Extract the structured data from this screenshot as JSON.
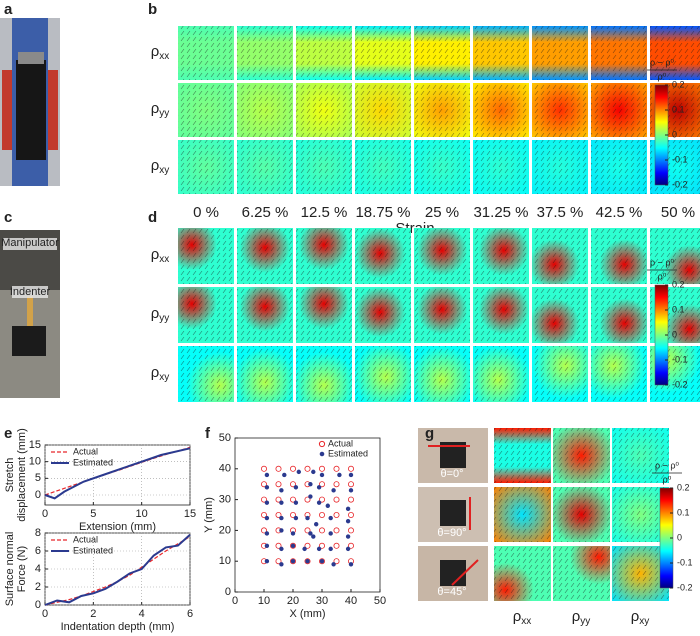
{
  "panel_labels": [
    "a",
    "b",
    "c",
    "d",
    "e",
    "f",
    "g"
  ],
  "photo_labels": {
    "manipulator": "Manipulator",
    "indenter": "Indenter",
    "angles": [
      "θ=0°",
      "θ=90°",
      "θ=45°"
    ]
  },
  "rows": [
    {
      "symbol": "ρ",
      "sub": "xx"
    },
    {
      "symbol": "ρ",
      "sub": "yy"
    },
    {
      "symbol": "ρ",
      "sub": "xy"
    }
  ],
  "strain": {
    "labels": [
      "0 %",
      "6.25 %",
      "12.5 %",
      "18.75 %",
      "25 %",
      "31.25 %",
      "37.5 %",
      "42.5 %",
      "50 %"
    ],
    "axis_label": "Strain"
  },
  "colorbars": [
    {
      "numerator": "ρ − ρ⁰",
      "denominator": "ρ⁰",
      "lim": [
        -0.2,
        0.2
      ],
      "ticks": [
        0.2,
        0.1,
        0,
        -0.1,
        -0.2
      ]
    },
    {
      "numerator": "ρ − ρ⁰",
      "denominator": "ρ⁰",
      "lim": [
        -0.2,
        0.2
      ],
      "ticks": [
        0.2,
        0.1,
        0,
        -0.1,
        -0.2
      ]
    },
    {
      "numerator": "ρ − ρ⁰",
      "denominator": "ρ⁰",
      "lim": [
        -0.2,
        0.2
      ],
      "ticks": [
        0.2,
        0.1,
        0,
        -0.1,
        -0.2
      ]
    }
  ],
  "chart_data": [
    {
      "type": "line",
      "xlabel": "Extension (mm)",
      "ylabel": [
        "Stretch",
        "displacement (mm)"
      ],
      "x": [
        0,
        1,
        2,
        4,
        6,
        8,
        10,
        12,
        15
      ],
      "series": [
        {
          "name": "Actual",
          "color": "#e8262a",
          "dash": true,
          "values": [
            0,
            1,
            2,
            4,
            5.9,
            7.8,
            9.8,
            11.7,
            14.3
          ]
        },
        {
          "name": "Estimated",
          "color": "#2b3a8f",
          "dash": false,
          "values": [
            0,
            -1,
            1,
            4,
            6,
            8,
            10,
            12,
            14
          ]
        }
      ],
      "xlim": [
        0,
        15
      ],
      "ylim": [
        -3,
        15
      ],
      "xticks": [
        0,
        5,
        10,
        15
      ],
      "yticks": [
        0,
        5,
        10,
        15
      ],
      "grid": true
    },
    {
      "type": "line",
      "xlabel": "Indentation depth (mm)",
      "ylabel": [
        "Surface normal",
        "Force (N)"
      ],
      "x": [
        0,
        0.5,
        1,
        1.5,
        2,
        2.5,
        3,
        3.5,
        4,
        4.5,
        5,
        5.5,
        6
      ],
      "series": [
        {
          "name": "Actual",
          "color": "#e8262a",
          "dash": true,
          "values": [
            0,
            0.3,
            0.6,
            1,
            1.5,
            2,
            2.6,
            3.3,
            4.2,
            5.1,
            6,
            6.8,
            7.6
          ]
        },
        {
          "name": "Estimated",
          "color": "#2b3a8f",
          "dash": false,
          "values": [
            0,
            0.5,
            0.3,
            1,
            1.3,
            1.8,
            2.6,
            3.5,
            4,
            5.5,
            6.4,
            6.6,
            7.8
          ]
        }
      ],
      "xlim": [
        0,
        6
      ],
      "ylim": [
        0,
        8
      ],
      "xticks": [
        0,
        2,
        4,
        6
      ],
      "yticks": [
        0,
        2,
        4,
        6,
        8
      ],
      "grid": true
    },
    {
      "type": "scatter",
      "xlabel": "X (mm)",
      "ylabel": "Y (mm)",
      "series": [
        {
          "name": "Actual",
          "color": "#e8262a",
          "marker": "circle",
          "x": [
            10,
            15,
            20,
            25,
            30,
            35,
            40,
            10,
            15,
            20,
            25,
            30,
            35,
            40,
            10,
            15,
            20,
            25,
            30,
            35,
            40,
            10,
            15,
            20,
            25,
            30,
            35,
            40,
            10,
            15,
            20,
            25,
            30,
            35,
            40,
            10,
            15,
            20,
            25,
            30,
            35,
            40,
            10,
            15,
            20,
            25,
            30,
            35,
            40
          ],
          "values": [
            40,
            40,
            40,
            40,
            40,
            40,
            40,
            35,
            35,
            35,
            35,
            35,
            35,
            35,
            30,
            30,
            30,
            30,
            30,
            30,
            30,
            25,
            25,
            25,
            25,
            25,
            25,
            25,
            20,
            20,
            20,
            20,
            20,
            20,
            20,
            15,
            15,
            15,
            15,
            15,
            15,
            15,
            10,
            10,
            10,
            10,
            10,
            10,
            10
          ]
        },
        {
          "name": "Estimated",
          "color": "#2b3a8f",
          "marker": "dot",
          "x": [
            11,
            17,
            22,
            27,
            30,
            36,
            40,
            11,
            16,
            21,
            26,
            29,
            34,
            40,
            11,
            16,
            21,
            26,
            29,
            32,
            39,
            11,
            16,
            21,
            25,
            28,
            33,
            39,
            11,
            16,
            20,
            26,
            27,
            33,
            39,
            11,
            16,
            20,
            24,
            29,
            33,
            39,
            11,
            16,
            20,
            25,
            30,
            34,
            40
          ],
          "values": [
            38,
            38,
            39,
            39,
            38,
            38,
            38,
            34,
            33,
            34,
            35,
            34,
            33,
            33,
            29,
            29,
            29,
            31,
            29,
            28,
            27,
            24,
            24,
            24,
            24,
            22,
            24,
            23,
            19,
            20,
            19,
            19,
            18,
            19,
            18,
            15,
            14,
            15,
            14,
            14,
            14,
            14,
            10,
            9,
            10,
            10,
            10,
            9,
            9
          ]
        }
      ],
      "xlim": [
        0,
        50
      ],
      "ylim": [
        0,
        50
      ],
      "xticks": [
        0,
        10,
        20,
        30,
        40,
        50
      ],
      "yticks": [
        0,
        10,
        20,
        30,
        40,
        50
      ],
      "grid": false
    }
  ]
}
